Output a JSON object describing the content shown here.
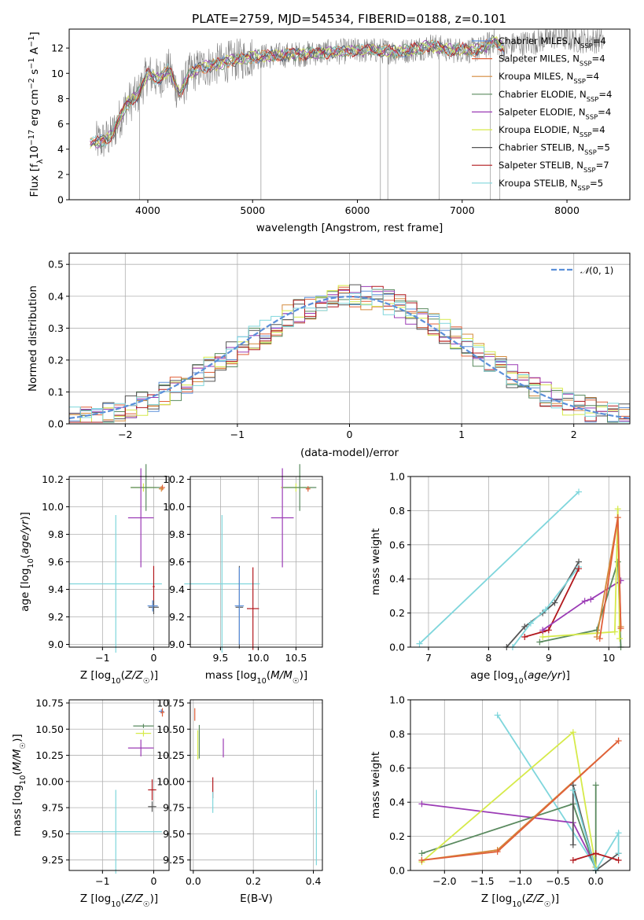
{
  "title": "PLATE=2759, MJD=54534, FIBERID=0188, z=0.101",
  "colors": {
    "chabrier_miles": "#5b8fd9",
    "salpeter_miles": "#e0603a",
    "kroupa_miles": "#d48a3c",
    "chabrier_elodie": "#5a8a5f",
    "salpeter_elodie": "#9b3bb5",
    "kroupa_elodie": "#d6ea4a",
    "chabrier_stelib": "#555555",
    "salpeter_stelib": "#b2181d",
    "kroupa_stelib": "#7fd6dc",
    "spectrum": "#808080",
    "gaussian": "#5b8fd9",
    "grid": "#b0b0b0"
  },
  "chart_data": [
    {
      "id": "spectrum",
      "type": "line",
      "title": "PLATE=2759, MJD=54534, FIBERID=0188, z=0.101",
      "xlabel": "wavelength [Angstrom, rest frame]",
      "ylabel": "Flux [f_λ10^-17 erg cm^-2 s^-1 A^-1]",
      "xlim": [
        3250,
        8600
      ],
      "ylim": [
        0,
        13.5
      ],
      "xticks": [
        "4000",
        "5000",
        "6000",
        "7000",
        "8000"
      ],
      "yticks": [
        "0",
        "2",
        "4",
        "6",
        "8",
        "10",
        "12"
      ],
      "grid": false,
      "legend_position": "right",
      "legend": [
        {
          "label": "Chabrier MILES, N",
          "sub": "SSP",
          "suffix": "=4"
        },
        {
          "label": "Salpeter MILES, N",
          "sub": "SSP",
          "suffix": "=4"
        },
        {
          "label": "Kroupa MILES, N",
          "sub": "SSP",
          "suffix": "=4"
        },
        {
          "label": "Chabrier ELODIE, N",
          "sub": "SSP",
          "suffix": "=4"
        },
        {
          "label": "Salpeter ELODIE, N",
          "sub": "SSP",
          "suffix": "=4"
        },
        {
          "label": "Kroupa ELODIE, N",
          "sub": "SSP",
          "suffix": "=4"
        },
        {
          "label": "Chabrier STELIB, N",
          "sub": "SSP",
          "suffix": "=5"
        },
        {
          "label": "Salpeter STELIB, N",
          "sub": "SSP",
          "suffix": "=7"
        },
        {
          "label": "Kroupa STELIB, N",
          "sub": "SSP",
          "suffix": "=5"
        }
      ],
      "continuum": {
        "x": [
          3450,
          3550,
          3650,
          3800,
          3900,
          4000,
          4100,
          4200,
          4300,
          4400,
          4500,
          4600,
          4800,
          5000,
          5200,
          5400,
          5600,
          5800,
          6000,
          6200,
          6400,
          6600,
          6700,
          6800,
          6900,
          7000,
          7100,
          7200,
          7300,
          7400,
          7500,
          7700,
          7900,
          8100,
          8300
        ],
        "y": [
          4.5,
          4.6,
          5.0,
          7.6,
          8.2,
          10.0,
          9.5,
          10.3,
          8.3,
          10.0,
          10.4,
          10.6,
          11.0,
          11.3,
          11.4,
          11.5,
          11.6,
          11.7,
          11.8,
          11.8,
          11.7,
          12.0,
          12.2,
          12.0,
          11.8,
          11.9,
          11.8,
          12.0,
          12.6,
          12.0,
          12.3,
          12.5,
          12.9,
          12.6,
          12.6
        ]
      },
      "model_range": [
        3450,
        7400
      ],
      "data_range": [
        3500,
        8350
      ]
    },
    {
      "id": "residual_hist",
      "type": "area",
      "xlabel": "(data-model)/error",
      "ylabel": "Normed distribution",
      "xlim": [
        -2.5,
        2.5
      ],
      "ylim": [
        0,
        0.535
      ],
      "xticks": [
        "-2",
        "-1",
        "0",
        "1",
        "2"
      ],
      "yticks": [
        "0.0",
        "0.1",
        "0.2",
        "0.3",
        "0.4",
        "0.5"
      ],
      "grid": true,
      "legend_position": "top-right",
      "legend": [
        "𝒩(0, 1)"
      ],
      "bins": {
        "start": -2.5,
        "width": 0.1,
        "count": 50
      },
      "gaussian": {
        "mean": 0,
        "sigma": 1
      }
    },
    {
      "id": "age_vs_Z",
      "type": "scatter",
      "xlabel": "Z [log10(Z/Z☉)]",
      "ylabel": "age [log10(age/yr)]",
      "xlim": [
        -1.65,
        0.3
      ],
      "ylim": [
        8.98,
        10.22
      ],
      "xticks": [
        "-1",
        "0"
      ],
      "yticks": [
        "9.0",
        "9.2",
        "9.4",
        "9.6",
        "9.8",
        "10.0",
        "10.2"
      ],
      "grid": true,
      "points": [
        {
          "s": "kroupa_elodie",
          "x": -0.2,
          "y": 10.14,
          "xerr": 0.25,
          "yerr": 0.03
        },
        {
          "s": "chabrier_elodie",
          "x": -0.15,
          "y": 10.14,
          "xerr": 0.3,
          "yerr": 0.17
        },
        {
          "s": "salpeter_miles",
          "x": 0.17,
          "y": 10.14,
          "xerr": 0.05,
          "yerr": 0.02
        },
        {
          "s": "kroupa_miles",
          "x": 0.15,
          "y": 10.13,
          "xerr": 0.05,
          "yerr": 0.02
        },
        {
          "s": "salpeter_elodie",
          "x": -0.25,
          "y": 9.92,
          "xerr": 0.25,
          "yerr": 0.36
        },
        {
          "s": "kroupa_stelib",
          "x": -0.74,
          "y": 9.44,
          "xerr": 0.9,
          "yerr": 0.5
        },
        {
          "s": "salpeter_stelib",
          "x": 0.0,
          "y": 9.42,
          "xerr": 0.02,
          "yerr": 0.15
        },
        {
          "s": "chabrier_stelib",
          "x": 0.0,
          "y": 9.27,
          "xerr": 0.1,
          "yerr": 0.05
        },
        {
          "s": "chabrier_miles",
          "x": -0.02,
          "y": 9.28,
          "xerr": 0.1,
          "yerr": 0.04
        }
      ]
    },
    {
      "id": "age_vs_mass",
      "type": "scatter",
      "xlabel": "mass [log10(M/M☉)]",
      "ylabel": "",
      "xlim": [
        9.1,
        10.85
      ],
      "ylim": [
        8.98,
        10.22
      ],
      "xticks": [
        "9.5",
        "10.0",
        "10.5"
      ],
      "yticks": [
        "9.0",
        "9.2",
        "9.4",
        "9.6",
        "9.8",
        "10.0",
        "10.2"
      ],
      "grid": true,
      "points": [
        {
          "s": "kroupa_elodie",
          "x": 10.5,
          "y": 10.14,
          "xerr": 0.2,
          "yerr": 0.03
        },
        {
          "s": "chabrier_elodie",
          "x": 10.55,
          "y": 10.14,
          "xerr": 0.22,
          "yerr": 0.17
        },
        {
          "s": "salpeter_miles",
          "x": 10.66,
          "y": 10.13,
          "xerr": 0.03,
          "yerr": 0.02
        },
        {
          "s": "salpeter_elodie",
          "x": 10.32,
          "y": 9.92,
          "xerr": 0.15,
          "yerr": 0.36
        },
        {
          "s": "kroupa_stelib",
          "x": 9.52,
          "y": 9.44,
          "xerr": 0.5,
          "yerr": 0.5
        },
        {
          "s": "salpeter_stelib",
          "x": 9.93,
          "y": 9.26,
          "xerr": 0.08,
          "yerr": 0.3
        },
        {
          "s": "chabrier_stelib",
          "x": 9.75,
          "y": 9.27,
          "xerr": 0.05,
          "yerr": 0.3
        },
        {
          "s": "chabrier_miles",
          "x": 9.75,
          "y": 9.28,
          "xerr": 0.06,
          "yerr": 0.28
        }
      ]
    },
    {
      "id": "weight_vs_age",
      "type": "line",
      "xlabel": "age [log10(age/yr)]",
      "ylabel": "mass weight",
      "xlim": [
        6.7,
        10.35
      ],
      "ylim": [
        0,
        1.0
      ],
      "xticks": [
        "7",
        "8",
        "9",
        "10"
      ],
      "yticks": [
        "0.0",
        "0.2",
        "0.4",
        "0.6",
        "0.8",
        "1.0"
      ],
      "grid": true,
      "series": [
        {
          "s": "kroupa_stelib",
          "x": [
            6.85,
            9.5
          ],
          "y": [
            0.02,
            0.91
          ]
        },
        {
          "s": "chabrier_stelib",
          "x": [
            8.3,
            8.6,
            8.9,
            9.1,
            9.5
          ],
          "y": [
            0.0,
            0.12,
            0.2,
            0.26,
            0.5
          ]
        },
        {
          "s": "kroupa_stelib",
          "x": [
            8.4,
            8.7,
            8.95,
            9.5
          ],
          "y": [
            0.0,
            0.14,
            0.22,
            0.47
          ]
        },
        {
          "s": "salpeter_stelib",
          "x": [
            8.6,
            8.9,
            9.0,
            9.5
          ],
          "y": [
            0.06,
            0.09,
            0.1,
            0.46
          ]
        },
        {
          "s": "salpeter_elodie",
          "x": [
            8.9,
            9.6,
            9.7,
            10.2
          ],
          "y": [
            0.1,
            0.27,
            0.28,
            0.39
          ]
        },
        {
          "s": "chabrier_elodie",
          "x": [
            8.85,
            9.8,
            10.15,
            10.2
          ],
          "y": [
            0.03,
            0.1,
            0.5,
            0.0
          ]
        },
        {
          "s": "kroupa_elodie",
          "x": [
            8.9,
            10.1,
            10.15,
            10.18
          ],
          "y": [
            0.06,
            0.09,
            0.81,
            0.05
          ]
        },
        {
          "s": "kroupa_miles",
          "x": [
            9.8,
            10.15,
            10.2
          ],
          "y": [
            0.06,
            0.76,
            0.12
          ]
        },
        {
          "s": "salpeter_miles",
          "x": [
            9.85,
            10.15,
            10.2
          ],
          "y": [
            0.05,
            0.76,
            0.11
          ]
        }
      ]
    },
    {
      "id": "mass_vs_Z",
      "type": "scatter",
      "xlabel": "Z [log10(Z/Z☉)]",
      "ylabel": "mass [log10(M/M☉)]",
      "xlim": [
        -1.65,
        0.3
      ],
      "ylim": [
        9.15,
        10.78
      ],
      "xticks": [
        "-1",
        "0"
      ],
      "yticks": [
        "9.25",
        "9.50",
        "9.75",
        "10.00",
        "10.25",
        "10.50",
        "10.75"
      ],
      "grid": true,
      "points": [
        {
          "s": "chabrier_miles",
          "x": 0.15,
          "y": 10.67,
          "xerr": 0.05,
          "yerr": 0.02
        },
        {
          "s": "salpeter_miles",
          "x": 0.17,
          "y": 10.66,
          "xerr": 0.04,
          "yerr": 0.04
        },
        {
          "s": "chabrier_elodie",
          "x": -0.2,
          "y": 10.53,
          "xerr": 0.2,
          "yerr": 0.02
        },
        {
          "s": "kroupa_elodie",
          "x": -0.2,
          "y": 10.46,
          "xerr": 0.15,
          "yerr": 0.03
        },
        {
          "s": "salpeter_elodie",
          "x": -0.25,
          "y": 10.32,
          "xerr": 0.25,
          "yerr": 0.08
        },
        {
          "s": "salpeter_stelib",
          "x": -0.03,
          "y": 9.92,
          "xerr": 0.08,
          "yerr": 0.1
        },
        {
          "s": "chabrier_stelib",
          "x": -0.03,
          "y": 9.76,
          "xerr": 0.08,
          "yerr": 0.05
        },
        {
          "s": "kroupa_stelib",
          "x": -0.74,
          "y": 9.52,
          "xerr": 0.9,
          "yerr": 0.4
        }
      ]
    },
    {
      "id": "mass_vs_ebv",
      "type": "scatter",
      "xlabel": "E(B-V)",
      "ylabel": "",
      "xlim": [
        -0.01,
        0.43
      ],
      "ylim": [
        9.15,
        10.78
      ],
      "xticks": [
        "0.0",
        "0.2",
        "0.4"
      ],
      "yticks": [
        "9.25",
        "9.50",
        "9.75",
        "10.00",
        "10.25",
        "10.50",
        "10.75"
      ],
      "grid": true,
      "points": [
        {
          "s": "salpeter_miles",
          "x": 0.005,
          "y": 10.64,
          "xerr": 0.0,
          "yerr": 0.06
        },
        {
          "s": "chabrier_elodie",
          "x": 0.02,
          "y": 10.38,
          "xerr": 0.0,
          "yerr": 0.16
        },
        {
          "s": "kroupa_elodie",
          "x": 0.015,
          "y": 10.35,
          "xerr": 0.0,
          "yerr": 0.14
        },
        {
          "s": "salpeter_elodie",
          "x": 0.1,
          "y": 10.32,
          "xerr": 0.0,
          "yerr": 0.09
        },
        {
          "s": "salpeter_stelib",
          "x": 0.065,
          "y": 9.94,
          "xerr": 0.0,
          "yerr": 0.1
        },
        {
          "s": "kroupa_stelib",
          "x": 0.065,
          "y": 9.8,
          "xerr": 0.0,
          "yerr": 0.1
        },
        {
          "s": "kroupa_stelib",
          "x": 0.41,
          "y": 9.56,
          "xerr": 0.0,
          "yerr": 0.36
        }
      ]
    },
    {
      "id": "weight_vs_Z",
      "type": "line",
      "xlabel": "Z [log10(Z/Z☉)]",
      "ylabel": "mass weight",
      "xlim": [
        -2.45,
        0.45
      ],
      "ylim": [
        0,
        1.0
      ],
      "xticks": [
        "-2.0",
        "-1.5",
        "-1.0",
        "-0.5",
        "0.0"
      ],
      "yticks": [
        "0.0",
        "0.2",
        "0.4",
        "0.6",
        "0.8",
        "1.0"
      ],
      "grid": true,
      "series": [
        {
          "s": "kroupa_stelib",
          "x": [
            -1.3,
            0.0
          ],
          "y": [
            0.91,
            0.02
          ]
        },
        {
          "s": "salpeter_elodie",
          "x": [
            -2.3,
            -0.3,
            0.0
          ],
          "y": [
            0.39,
            0.28,
            0.02
          ]
        },
        {
          "s": "chabrier_elodie",
          "x": [
            -2.3,
            -0.3,
            0.0,
            0.0
          ],
          "y": [
            0.1,
            0.39,
            0.0,
            0.5
          ]
        },
        {
          "s": "kroupa_elodie",
          "x": [
            -2.3,
            -0.3,
            0.0
          ],
          "y": [
            0.05,
            0.81,
            0.02
          ]
        },
        {
          "s": "kroupa_miles",
          "x": [
            -2.3,
            -1.3,
            0.3
          ],
          "y": [
            0.06,
            0.12,
            0.76
          ]
        },
        {
          "s": "salpeter_miles",
          "x": [
            -2.3,
            -1.3,
            0.3
          ],
          "y": [
            0.06,
            0.11,
            0.76
          ]
        },
        {
          "s": "chabrier_stelib",
          "x": [
            -0.3,
            -0.3,
            0.0,
            0.3
          ],
          "y": [
            0.15,
            0.5,
            0.0,
            0.1
          ]
        },
        {
          "s": "kroupa_stelib",
          "x": [
            -0.3,
            0.0,
            0.3,
            0.3
          ],
          "y": [
            0.47,
            0.0,
            0.22,
            0.1
          ]
        },
        {
          "s": "salpeter_stelib",
          "x": [
            -0.3,
            0.0,
            0.3
          ],
          "y": [
            0.06,
            0.1,
            0.06
          ]
        }
      ]
    }
  ]
}
